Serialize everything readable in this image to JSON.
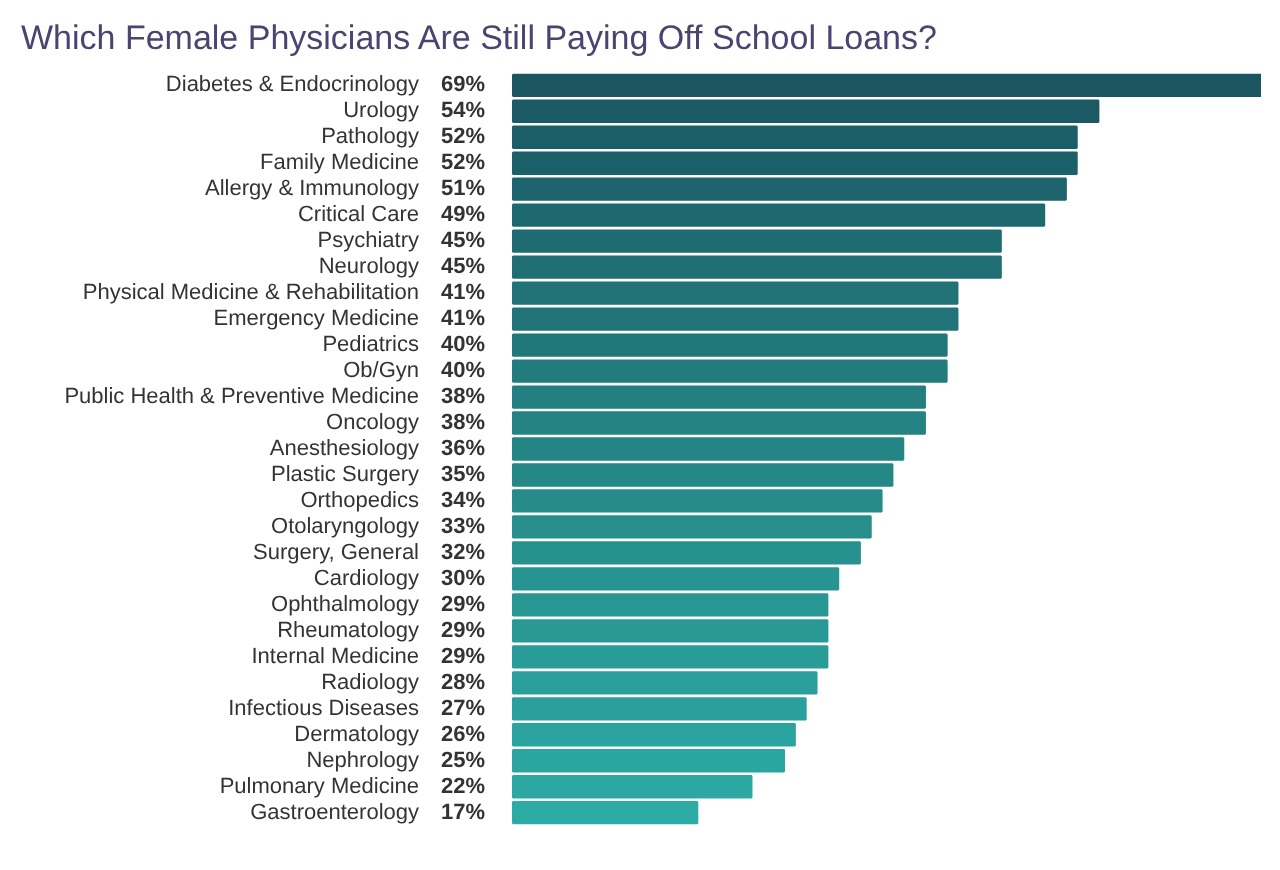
{
  "chart_data": {
    "type": "bar",
    "orientation": "horizontal",
    "title": "Which Female Physicians Are Still Paying Off School Loans?",
    "categories": [
      "Diabetes & Endocrinology",
      "Urology",
      "Pathology",
      "Family Medicine",
      "Allergy & Immunology",
      "Critical Care",
      "Psychiatry",
      "Neurology",
      "Physical Medicine & Rehabilitation",
      "Emergency Medicine",
      "Pediatrics",
      "Ob/Gyn",
      "Public Health & Preventive Medicine",
      "Oncology",
      "Anesthesiology",
      "Plastic Surgery",
      "Orthopedics",
      "Otolaryngology",
      "Surgery, General",
      "Cardiology",
      "Ophthalmology",
      "Rheumatology",
      "Internal Medicine",
      "Radiology",
      "Infectious Diseases",
      "Dermatology",
      "Nephrology",
      "Pulmonary Medicine",
      "Gastroenterology"
    ],
    "values": [
      69,
      54,
      52,
      52,
      51,
      49,
      45,
      45,
      41,
      41,
      40,
      40,
      38,
      38,
      36,
      35,
      34,
      33,
      32,
      30,
      29,
      29,
      29,
      28,
      27,
      26,
      25,
      22,
      17
    ],
    "value_labels": [
      "69%",
      "54%",
      "52%",
      "52%",
      "51%",
      "49%",
      "45%",
      "45%",
      "41%",
      "41%",
      "40%",
      "40%",
      "38%",
      "38%",
      "36%",
      "35%",
      "34%",
      "33%",
      "32%",
      "30%",
      "29%",
      "29%",
      "29%",
      "28%",
      "27%",
      "26%",
      "25%",
      "22%",
      "17%"
    ],
    "colors": [
      "#1a5560",
      "#1b5a64",
      "#1c5e67",
      "#1c616a",
      "#1d646c",
      "#1e686f",
      "#1e6b71",
      "#1f6e74",
      "#207276",
      "#217578",
      "#21787b",
      "#227b7d",
      "#237e80",
      "#248282",
      "#248585",
      "#258887",
      "#268b8a",
      "#278e8c",
      "#27918f",
      "#289491",
      "#289794",
      "#299996",
      "#299c98",
      "#2a9e9a",
      "#2aa09c",
      "#2ba39e",
      "#2ba5a0",
      "#2ca8a2",
      "#2caba5"
    ],
    "grid": false
  }
}
